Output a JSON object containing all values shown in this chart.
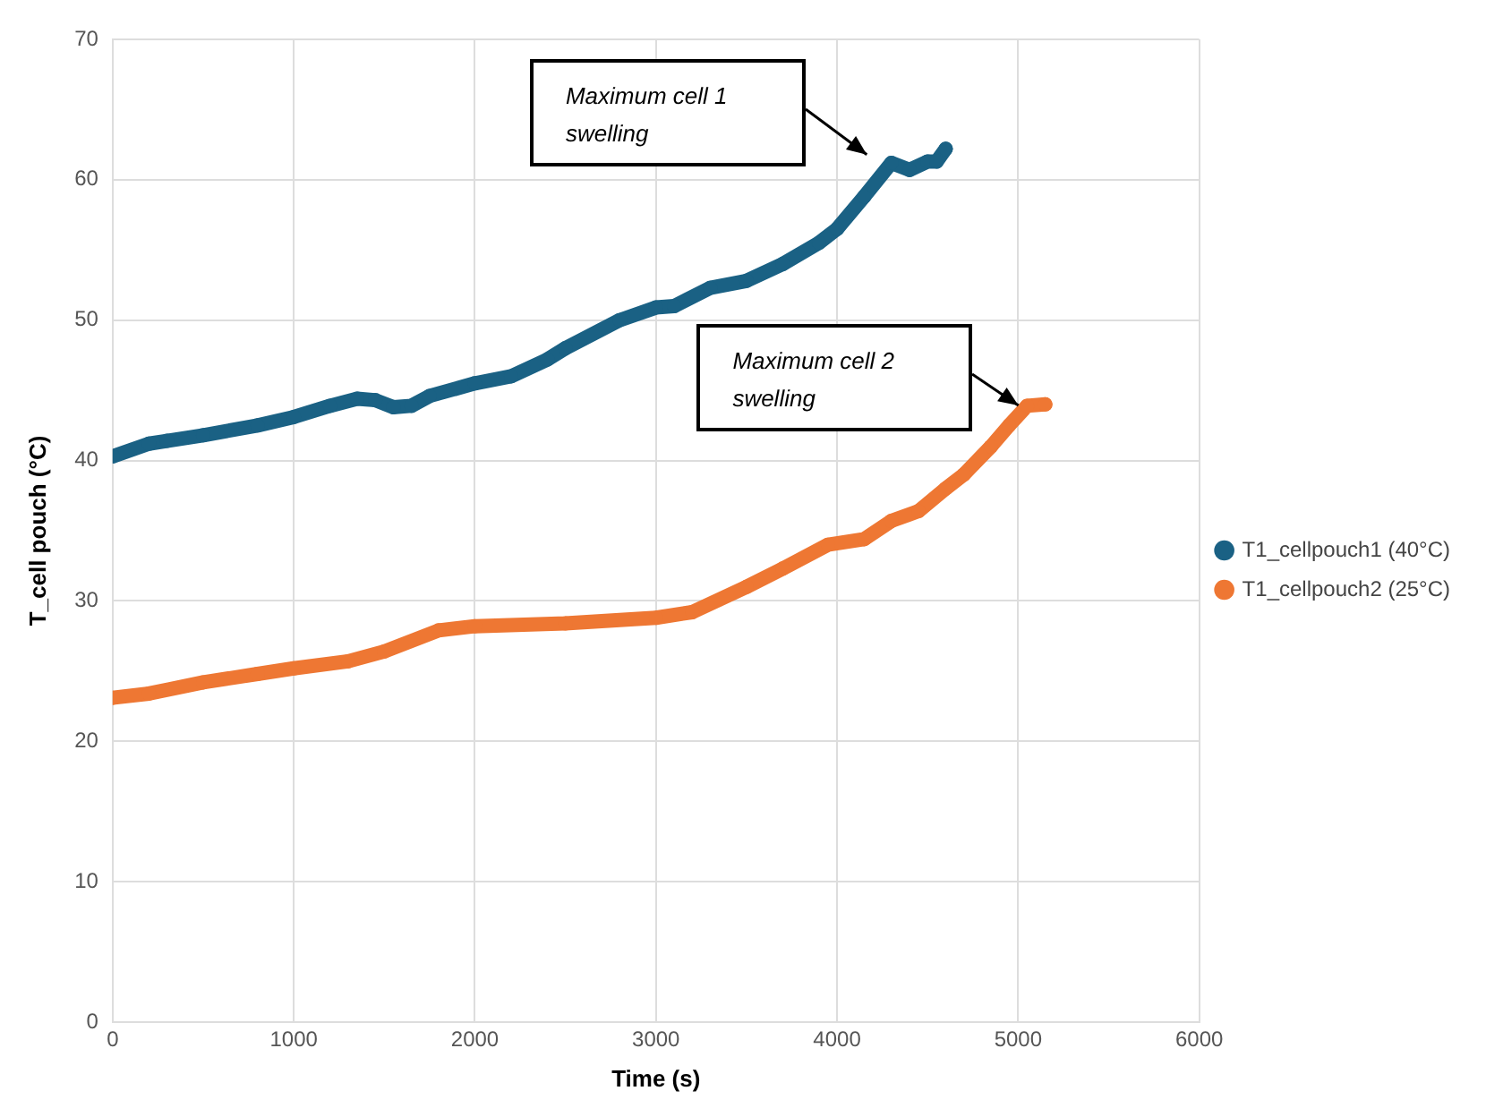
{
  "chart_data": {
    "type": "line",
    "xlabel": "Time (s)",
    "ylabel": "T_cell pouch (°C)",
    "xlim": [
      0,
      6000
    ],
    "xticks": [
      0,
      1000,
      2000,
      3000,
      4000,
      5000,
      6000
    ],
    "ylim": [
      0,
      70
    ],
    "yticks": [
      0,
      10,
      20,
      30,
      40,
      50,
      60,
      70
    ],
    "grid": true,
    "legend": "right",
    "marker": "circle",
    "series": [
      {
        "name": "T1_cellpouch1 (40°C)",
        "color": "#1a6184",
        "x": [
          0,
          200,
          300,
          500,
          800,
          1000,
          1200,
          1350,
          1450,
          1550,
          1650,
          1750,
          2000,
          2200,
          2400,
          2500,
          2800,
          3000,
          3100,
          3300,
          3500,
          3700,
          3900,
          4000,
          4150,
          4300,
          4400,
          4500,
          4550,
          4600
        ],
        "values": [
          40.3,
          41.2,
          41.4,
          41.8,
          42.5,
          43.1,
          43.9,
          44.4,
          44.3,
          43.8,
          43.9,
          44.6,
          45.5,
          46.0,
          47.2,
          48.0,
          50.0,
          50.9,
          51.0,
          52.3,
          52.8,
          54.0,
          55.5,
          56.5,
          58.8,
          61.2,
          60.7,
          61.3,
          61.3,
          62.2
        ]
      },
      {
        "name": "T1_cellpouch2 (25°C)",
        "color": "#ee7733",
        "x": [
          0,
          200,
          500,
          800,
          1000,
          1300,
          1500,
          1800,
          2000,
          2500,
          3000,
          3200,
          3500,
          3700,
          3950,
          4150,
          4300,
          4450,
          4600,
          4700,
          4850,
          4950,
          5050,
          5150
        ],
        "values": [
          23.1,
          23.4,
          24.2,
          24.8,
          25.2,
          25.7,
          26.4,
          27.9,
          28.2,
          28.4,
          28.8,
          29.2,
          31.0,
          32.3,
          34.0,
          34.4,
          35.7,
          36.4,
          38.0,
          39.0,
          41.0,
          42.5,
          43.9,
          44.0
        ]
      }
    ],
    "annotations": [
      "Maximum cell 1 swelling",
      "Maximum cell 2 swelling"
    ]
  }
}
